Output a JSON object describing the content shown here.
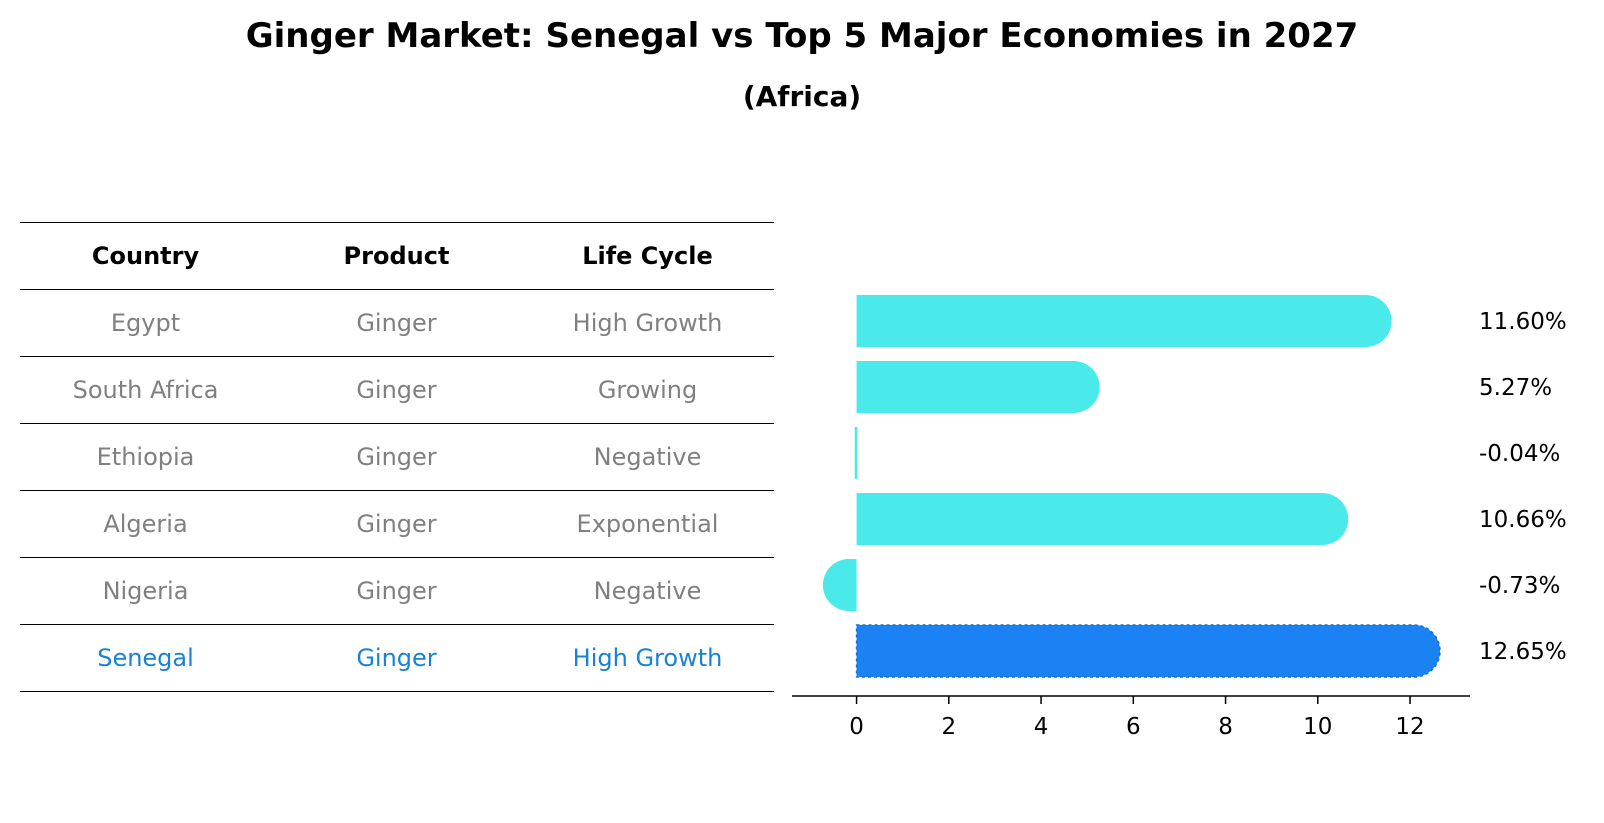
{
  "title": "Ginger Market: Senegal vs Top 5 Major Economies in 2027",
  "subtitle": "(Africa)",
  "table": {
    "headers": [
      "Country",
      "Product",
      "Life Cycle"
    ],
    "rows": [
      [
        "Egypt",
        "Ginger",
        "High Growth"
      ],
      [
        "South Africa",
        "Ginger",
        "Growing"
      ],
      [
        "Ethiopia",
        "Ginger",
        "Negative"
      ],
      [
        "Algeria",
        "Ginger",
        "Exponential"
      ],
      [
        "Nigeria",
        "Ginger",
        "Negative"
      ],
      [
        "Senegal",
        "Ginger",
        "High Growth"
      ]
    ],
    "highlight_color": "#1a82d4",
    "text_color": "#808080"
  },
  "chart_data": {
    "type": "bar",
    "orientation": "horizontal",
    "categories": [
      "Egypt",
      "South Africa",
      "Ethiopia",
      "Algeria",
      "Nigeria",
      "Senegal"
    ],
    "values": [
      11.6,
      5.27,
      -0.04,
      10.66,
      -0.73,
      12.65
    ],
    "value_labels": [
      "11.60%",
      "5.27%",
      "-0.04%",
      "10.66%",
      "-0.73%",
      "12.65%"
    ],
    "colors": [
      "#4aeaea",
      "#4aeaea",
      "#4aeaea",
      "#4aeaea",
      "#4aeaea",
      "#1a82f2"
    ],
    "xticks": [
      0,
      2,
      4,
      6,
      8,
      10,
      12
    ],
    "xlim": [
      -1.4,
      13.3
    ],
    "grid": false,
    "legend": "none"
  }
}
